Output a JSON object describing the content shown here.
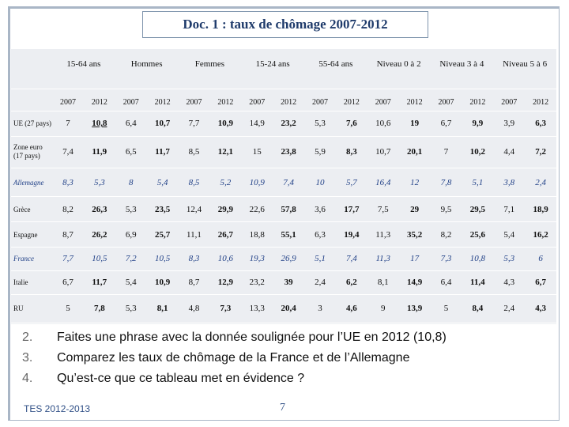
{
  "header": {
    "title": "Doc. 1 : taux de chômage 2007-2012"
  },
  "table": {
    "groups": [
      "15-64 ans",
      "Hommes",
      "Femmes",
      "15-24 ans",
      "55-64 ans",
      "Niveau 0 à 2",
      "Niveau 3 à 4",
      "Niveau 5 à 6"
    ],
    "years": [
      "2007",
      "2012",
      "2007",
      "2012",
      "2007",
      "2012",
      "2007",
      "2012",
      "2007",
      "2012",
      "2007",
      "2012",
      "2007",
      "2012",
      "2007",
      "2012"
    ],
    "rows": [
      {
        "label": "UE (27 pays)",
        "values": [
          "7",
          "10,8",
          "6,4",
          "10,7",
          "7,7",
          "10,9",
          "14,9",
          "23,2",
          "5,3",
          "7,6",
          "10,6",
          "19",
          "6,7",
          "9,9",
          "3,9",
          "6,3"
        ]
      },
      {
        "label": "Zone euro (17 pays)",
        "values": [
          "7,4",
          "11,9",
          "6,5",
          "11,7",
          "8,5",
          "12,1",
          "15",
          "23,8",
          "5,9",
          "8,3",
          "10,7",
          "20,1",
          "7",
          "10,2",
          "4,4",
          "7,2"
        ]
      },
      {
        "label": "Allemagne",
        "values": [
          "8,3",
          "5,3",
          "8",
          "5,4",
          "8,5",
          "5,2",
          "10,9",
          "7,4",
          "10",
          "5,7",
          "16,4",
          "12",
          "7,8",
          "5,1",
          "3,8",
          "2,4"
        ]
      },
      {
        "label": "Grèce",
        "values": [
          "8,2",
          "26,3",
          "5,3",
          "23,5",
          "12,4",
          "29,9",
          "22,6",
          "57,8",
          "3,6",
          "17,7",
          "7,5",
          "29",
          "9,5",
          "29,5",
          "7,1",
          "18,9"
        ]
      },
      {
        "label": "Espagne",
        "values": [
          "8,7",
          "26,2",
          "6,9",
          "25,7",
          "11,1",
          "26,7",
          "18,8",
          "55,1",
          "6,3",
          "19,4",
          "11,3",
          "35,2",
          "8,2",
          "25,6",
          "5,4",
          "16,2"
        ]
      },
      {
        "label": "France",
        "values": [
          "7,7",
          "10,5",
          "7,2",
          "10,5",
          "8,3",
          "10,6",
          "19,3",
          "26,9",
          "5,1",
          "7,4",
          "11,3",
          "17",
          "7,3",
          "10,8",
          "5,3",
          "6"
        ]
      },
      {
        "label": "Italie",
        "values": [
          "6,7",
          "11,7",
          "5,4",
          "10,9",
          "8,7",
          "12,9",
          "23,2",
          "39",
          "2,4",
          "6,2",
          "8,1",
          "14,9",
          "6,4",
          "11,4",
          "4,3",
          "6,7"
        ]
      },
      {
        "label": "RU",
        "values": [
          "5",
          "7,8",
          "5,3",
          "8,1",
          "4,8",
          "7,3",
          "13,3",
          "20,4",
          "3",
          "4,6",
          "9",
          "13,9",
          "5",
          "8,4",
          "2,4",
          "4,3"
        ]
      }
    ]
  },
  "questions": [
    {
      "number": "2.",
      "text": "Faites une phrase avec la donnée soulignée pour l’UE en 2012 (10,8)"
    },
    {
      "number": "3.",
      "text": "Comparez les taux de chômage de la France et de l’Allemagne"
    },
    {
      "number": "4.",
      "text": "Qu’est-ce que ce tableau met en évidence ?"
    }
  ],
  "footer": {
    "course": "TES 2012-2013",
    "page": "7"
  }
}
